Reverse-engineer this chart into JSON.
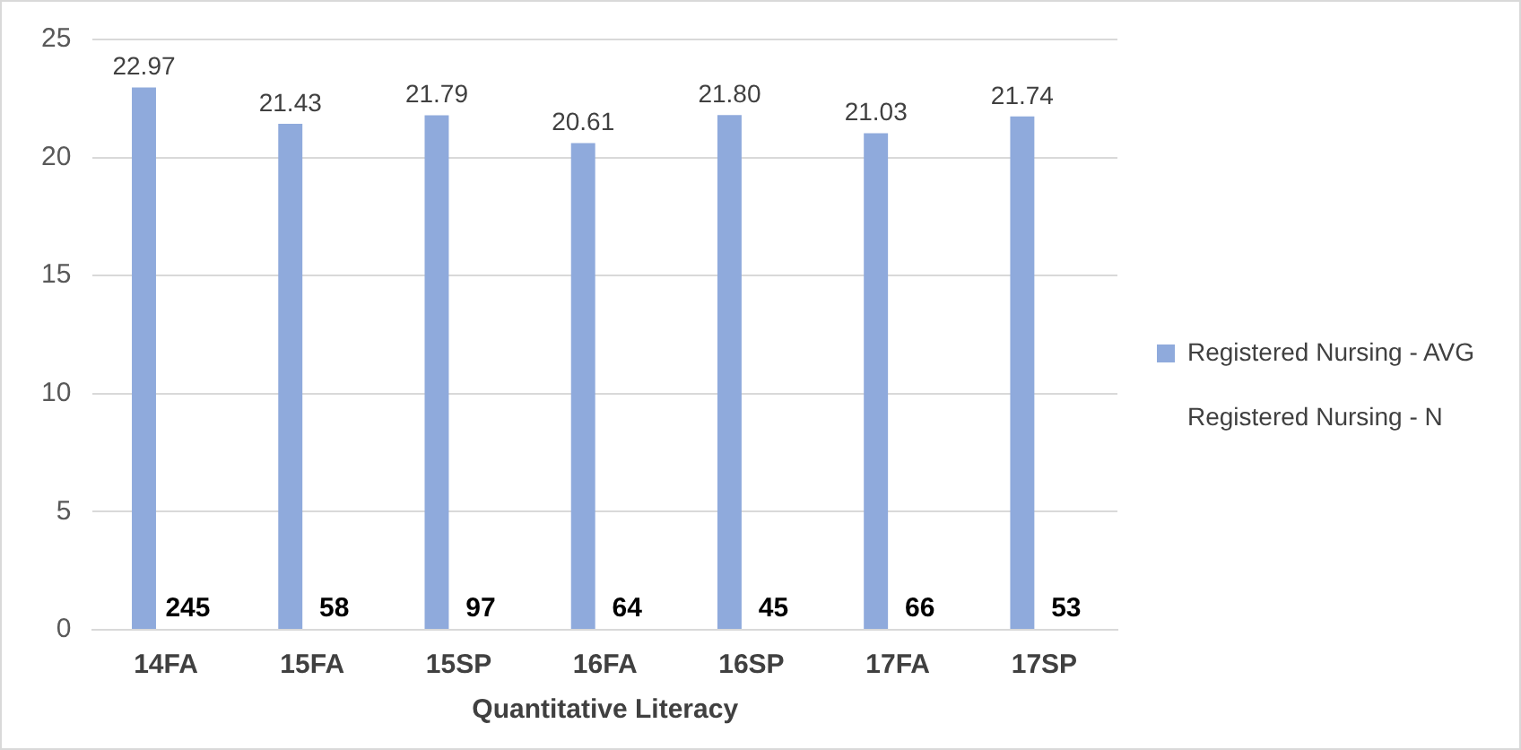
{
  "chart_data": {
    "type": "bar",
    "xlabel": "Quantitative Literacy",
    "categories": [
      "14FA",
      "15FA",
      "15SP",
      "16FA",
      "16SP",
      "17FA",
      "17SP"
    ],
    "series": [
      {
        "name": "Registered Nursing - AVG",
        "color": "#8faadc",
        "values": [
          22.97,
          21.43,
          21.79,
          20.61,
          21.8,
          21.03,
          21.74
        ],
        "value_labels": [
          "22.97",
          "21.43",
          "21.79",
          "20.61",
          "21.80",
          "21.03",
          "21.74"
        ]
      },
      {
        "name": "Registered Nursing - N",
        "values": [
          null,
          null,
          null,
          null,
          null,
          null,
          null
        ],
        "value_labels": [
          "245",
          "58",
          "97",
          "64",
          "45",
          "66",
          "53"
        ]
      }
    ],
    "ylim": [
      0,
      25
    ],
    "yticks": [
      0,
      5,
      10,
      15,
      20,
      25
    ],
    "grid": "y",
    "legend": "right"
  }
}
